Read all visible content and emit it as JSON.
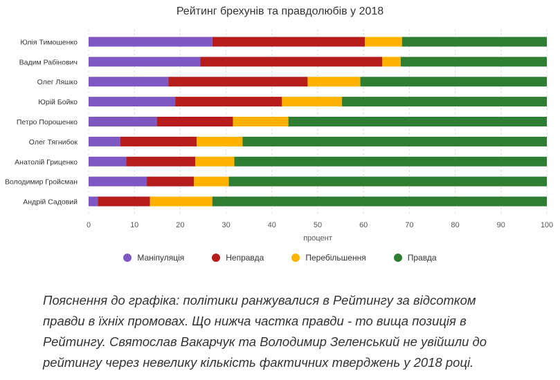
{
  "chart_data": {
    "type": "bar",
    "orientation": "horizontal",
    "stacked": true,
    "title": "Рейтинг брехунів та правдолюбів у 2018",
    "xlabel": "процент",
    "ylabel": "",
    "xlim": [
      0,
      100
    ],
    "xticks": [
      "0",
      "10",
      "20",
      "30",
      "40",
      "50",
      "60",
      "70",
      "80",
      "90",
      "100"
    ],
    "grid": true,
    "legend_position": "bottom",
    "categories": [
      "Юлія Тимошенко",
      "Вадим Рабінович",
      "Олег Ляшко",
      "Юрій Бойко",
      "Петро Порошенко",
      "Олег Тягнибок",
      "Анатолій Гриценко",
      "Володимир Гройсман",
      "Андрій Садовий"
    ],
    "series": [
      {
        "name": "Маніпуляція",
        "color": "#7e57c2",
        "values": [
          27.0,
          24.4,
          17.4,
          18.9,
          14.9,
          6.9,
          8.2,
          12.7,
          2.0
        ]
      },
      {
        "name": "Неправда",
        "color": "#b71c1c",
        "values": [
          33.3,
          39.7,
          30.4,
          23.3,
          16.6,
          16.7,
          15.1,
          10.3,
          11.4
        ]
      },
      {
        "name": "Перебільшення",
        "color": "#ffb300",
        "values": [
          8.1,
          4.0,
          11.5,
          13.1,
          12.1,
          10.0,
          8.5,
          7.6,
          13.6
        ]
      },
      {
        "name": "Правда",
        "color": "#2e7d32",
        "values": [
          31.6,
          31.9,
          40.7,
          44.7,
          56.4,
          66.4,
          68.2,
          69.4,
          73.0
        ]
      }
    ]
  },
  "caption": {
    "lines": [
      "Пояснення до графіка: політики ранжувалися в Рейтингу за відсотком",
      "правди в їхніх промовах. Що нижча частка правди - то вища позиція в",
      "Рейтингу. Святослав Вакарчук та Володимир Зеленський не увійшли до",
      "рейтингу через невелику кількість фактичних тверджень у 2018 році."
    ]
  }
}
